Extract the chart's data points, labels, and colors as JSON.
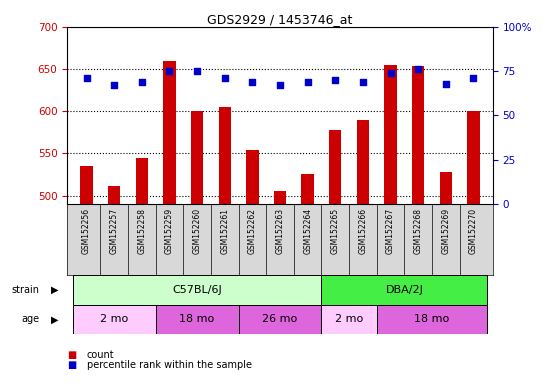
{
  "title": "GDS2929 / 1453746_at",
  "samples": [
    "GSM152256",
    "GSM152257",
    "GSM152258",
    "GSM152259",
    "GSM152260",
    "GSM152261",
    "GSM152262",
    "GSM152263",
    "GSM152264",
    "GSM152265",
    "GSM152266",
    "GSM152267",
    "GSM152268",
    "GSM152269",
    "GSM152270"
  ],
  "counts": [
    535,
    511,
    545,
    660,
    600,
    605,
    554,
    506,
    526,
    578,
    590,
    655,
    654,
    528,
    600
  ],
  "percentile_ranks": [
    71,
    67,
    69,
    75,
    75,
    71,
    69,
    67,
    69,
    70,
    69,
    74,
    76,
    68,
    71
  ],
  "ylim_left": [
    490,
    700
  ],
  "ylim_right": [
    0,
    100
  ],
  "yticks_left": [
    500,
    550,
    600,
    650,
    700
  ],
  "yticks_right": [
    0,
    25,
    50,
    75,
    100
  ],
  "ytick_right_labels": [
    "0",
    "25",
    "50",
    "75",
    "100%"
  ],
  "bar_color": "#cc0000",
  "dot_color": "#0000cc",
  "strain_groups": [
    {
      "label": "C57BL/6J",
      "start": 0,
      "end": 8,
      "color": "#ccffcc"
    },
    {
      "label": "DBA/2J",
      "start": 9,
      "end": 14,
      "color": "#44ee44"
    }
  ],
  "age_groups": [
    {
      "label": "2 mo",
      "start": 0,
      "end": 2,
      "color": "#ffccff"
    },
    {
      "label": "18 mo",
      "start": 3,
      "end": 5,
      "color": "#dd66dd"
    },
    {
      "label": "26 mo",
      "start": 6,
      "end": 8,
      "color": "#dd66dd"
    },
    {
      "label": "2 mo",
      "start": 9,
      "end": 10,
      "color": "#ffccff"
    },
    {
      "label": "18 mo",
      "start": 11,
      "end": 14,
      "color": "#dd66dd"
    }
  ],
  "bar_color_red": "#cc0000",
  "dot_color_blue": "#0000cc",
  "left_tick_color": "#cc0000",
  "right_tick_color": "#0000cc"
}
